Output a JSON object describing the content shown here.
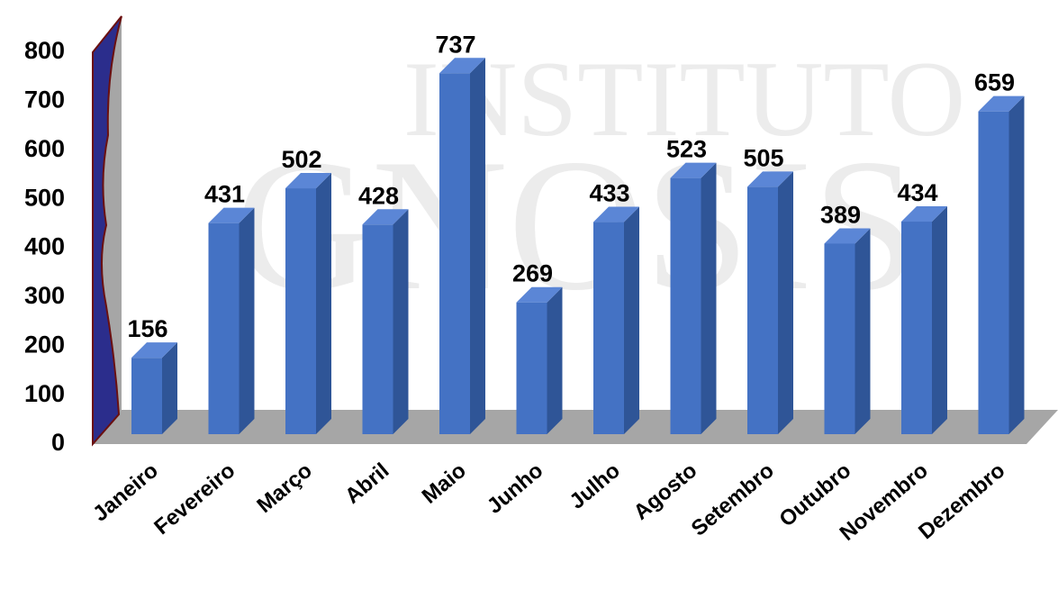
{
  "chart_data": {
    "type": "bar3d",
    "watermark": [
      "INSTITUTO",
      "GNOSIS"
    ],
    "categories": [
      "Janeiro",
      "Fevereiro",
      "Março",
      "Abril",
      "Maio",
      "Junho",
      "Julho",
      "Agosto",
      "Setembro",
      "Outubro",
      "Novembro",
      "Dezembro"
    ],
    "values": [
      156,
      431,
      502,
      428,
      737,
      269,
      433,
      523,
      505,
      389,
      434,
      659
    ],
    "color": "#4472c4",
    "ylim": [
      0,
      800
    ],
    "yticks": [
      0,
      100,
      200,
      300,
      400,
      500,
      600,
      700,
      800
    ],
    "grid": false
  }
}
